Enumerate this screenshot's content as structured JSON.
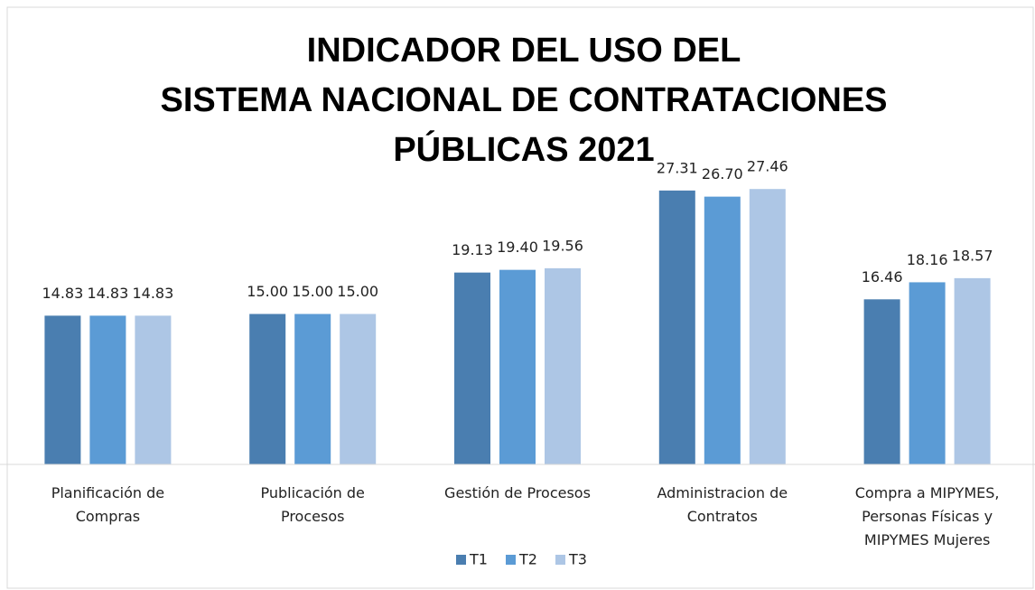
{
  "chart_data": {
    "type": "bar",
    "title": [
      "INDICADOR DEL USO DEL",
      "SISTEMA NACIONAL DE CONTRATACIONES",
      "PÚBLICAS 2021"
    ],
    "categories": [
      "Planificación de Compras",
      "Publicación de Procesos",
      "Gestión de Procesos",
      "Administracion de Contratos",
      "Compra a MIPYMES, Personas Físicas y MIPYMES Mujeres"
    ],
    "series": [
      {
        "name": "T1",
        "color": "#4a7eb0",
        "values": [
          14.83,
          15,
          19.13,
          27.31,
          16.46
        ],
        "value_labels": [
          "14.83",
          "15.00",
          "19.13",
          "27.31",
          "16.46"
        ]
      },
      {
        "name": "T2",
        "color": "#5b9bd5",
        "values": [
          14.83,
          15,
          19.4,
          26.7,
          18.16
        ],
        "value_labels": [
          "14.83",
          "15.00",
          "19.40",
          "26.70",
          "18.16"
        ]
      },
      {
        "name": "T3",
        "color": "#adc6e5",
        "values": [
          14.83,
          15,
          19.56,
          27.46,
          18.57
        ],
        "value_labels": [
          "14.83",
          "15.00",
          "19.56",
          "27.46",
          "18.57"
        ]
      }
    ],
    "ylim": [
      0,
      30
    ],
    "legend": "bottom"
  }
}
